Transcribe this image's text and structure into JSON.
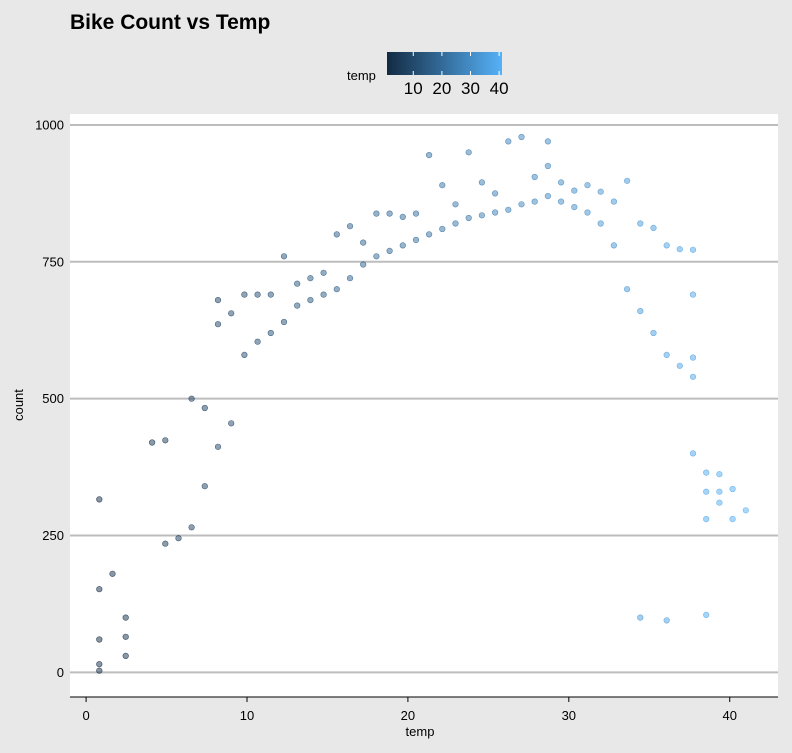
{
  "chart_data": {
    "type": "scatter",
    "title": "Bike Count vs Temp",
    "xlabel": "temp",
    "ylabel": "count",
    "xlim": [
      -1,
      43
    ],
    "ylim": [
      -45,
      1020
    ],
    "x_ticks": [
      0,
      10,
      20,
      30,
      40
    ],
    "y_ticks": [
      0,
      250,
      500,
      750,
      1000
    ],
    "grid": "horizontal-major",
    "legend": {
      "title": "temp",
      "placement": "top",
      "type": "colorbar",
      "ticks": [
        10,
        20,
        30,
        40
      ],
      "range": [
        0.82,
        41
      ],
      "color_low": "#132b43",
      "color_high": "#56b1f7"
    },
    "point_alpha": 0.5,
    "points": [
      [
        0.82,
        316
      ],
      [
        0.82,
        152
      ],
      [
        0.82,
        60
      ],
      [
        0.82,
        15
      ],
      [
        0.82,
        3
      ],
      [
        1.64,
        180
      ],
      [
        2.46,
        100
      ],
      [
        2.46,
        65
      ],
      [
        2.46,
        30
      ],
      [
        4.1,
        420
      ],
      [
        4.92,
        424
      ],
      [
        6.56,
        500
      ],
      [
        7.38,
        483
      ],
      [
        8.2,
        636
      ],
      [
        8.2,
        680
      ],
      [
        9.02,
        656
      ],
      [
        9.84,
        690
      ],
      [
        10.66,
        690
      ],
      [
        11.48,
        690
      ],
      [
        12.3,
        760
      ],
      [
        13.12,
        710
      ],
      [
        13.94,
        720
      ],
      [
        14.76,
        730
      ],
      [
        15.58,
        800
      ],
      [
        16.4,
        815
      ],
      [
        17.22,
        785
      ],
      [
        18.04,
        838
      ],
      [
        18.86,
        838
      ],
      [
        19.68,
        832
      ],
      [
        20.5,
        838
      ],
      [
        21.32,
        945
      ],
      [
        22.14,
        890
      ],
      [
        22.96,
        855
      ],
      [
        23.78,
        950
      ],
      [
        24.6,
        895
      ],
      [
        25.42,
        875
      ],
      [
        26.24,
        970
      ],
      [
        27.06,
        978
      ],
      [
        27.88,
        905
      ],
      [
        28.7,
        970
      ],
      [
        28.7,
        925
      ],
      [
        29.52,
        895
      ],
      [
        30.34,
        880
      ],
      [
        31.16,
        890
      ],
      [
        31.98,
        878
      ],
      [
        32.8,
        860
      ],
      [
        33.62,
        898
      ],
      [
        34.44,
        820
      ],
      [
        35.26,
        812
      ],
      [
        36.08,
        780
      ],
      [
        36.9,
        773
      ],
      [
        37.72,
        772
      ],
      [
        37.72,
        690
      ],
      [
        38.54,
        365
      ],
      [
        38.54,
        105
      ],
      [
        39.36,
        362
      ],
      [
        39.36,
        310
      ],
      [
        40.18,
        335
      ],
      [
        40.18,
        280
      ],
      [
        41,
        296
      ],
      [
        36.08,
        95
      ],
      [
        34.44,
        100
      ],
      [
        37.72,
        575
      ],
      [
        4.92,
        235
      ],
      [
        5.74,
        245
      ],
      [
        6.56,
        265
      ],
      [
        7.38,
        340
      ],
      [
        8.2,
        412
      ],
      [
        9.02,
        455
      ],
      [
        9.84,
        580
      ],
      [
        10.66,
        604
      ],
      [
        11.48,
        620
      ],
      [
        12.3,
        640
      ],
      [
        13.12,
        670
      ],
      [
        13.94,
        680
      ],
      [
        14.76,
        690
      ],
      [
        15.58,
        700
      ],
      [
        16.4,
        720
      ],
      [
        17.22,
        745
      ],
      [
        18.04,
        760
      ],
      [
        18.86,
        770
      ],
      [
        19.68,
        780
      ],
      [
        20.5,
        790
      ],
      [
        21.32,
        800
      ],
      [
        22.14,
        810
      ],
      [
        22.96,
        820
      ],
      [
        23.78,
        830
      ],
      [
        24.6,
        835
      ],
      [
        25.42,
        840
      ],
      [
        26.24,
        845
      ],
      [
        27.06,
        855
      ],
      [
        27.88,
        860
      ],
      [
        28.7,
        870
      ],
      [
        29.52,
        860
      ],
      [
        30.34,
        850
      ],
      [
        31.16,
        840
      ],
      [
        31.98,
        820
      ],
      [
        32.8,
        780
      ],
      [
        33.62,
        700
      ],
      [
        34.44,
        660
      ],
      [
        35.26,
        620
      ],
      [
        36.08,
        580
      ],
      [
        36.9,
        560
      ],
      [
        37.72,
        540
      ],
      [
        38.54,
        330
      ],
      [
        37.72,
        400
      ],
      [
        38.54,
        280
      ],
      [
        39.36,
        330
      ]
    ]
  }
}
